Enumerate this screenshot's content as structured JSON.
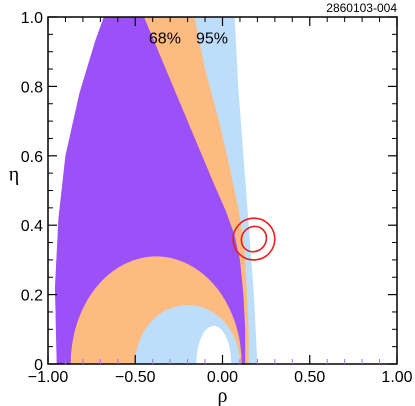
{
  "figure_id": "2860103-004",
  "chart_data": {
    "type": "area",
    "xlabel": "ρ",
    "ylabel": "η",
    "xlim": [
      -1.0,
      1.0
    ],
    "ylim": [
      0,
      1.0
    ],
    "x_ticks": [
      -1.0,
      -0.5,
      0.0,
      0.5,
      1.0
    ],
    "x_tick_labels": [
      "−1.00",
      "−0.50",
      "0.00",
      "0.50",
      "1.00"
    ],
    "y_ticks": [
      0,
      0.2,
      0.4,
      0.6,
      0.8,
      1.0
    ],
    "y_tick_labels": [
      "0",
      "0.2",
      "0.4",
      "0.6",
      "0.8",
      "1.0"
    ],
    "grid": false,
    "colors": {
      "inner_region": "#9b51f7",
      "region_68": "#fdbb82",
      "region_95": "#bcdefa",
      "ellipse": "#e8201e",
      "tick_minor": "#a070f0"
    },
    "regions": [
      {
        "name": "95%",
        "label": "95%",
        "label_at": [
          -0.06,
          0.95
        ],
        "color": "#bcdefa",
        "boundary": [
          [
            -0.95,
            0.0
          ],
          [
            -0.96,
            0.22
          ],
          [
            -0.94,
            0.42
          ],
          [
            -0.9,
            0.6
          ],
          [
            -0.82,
            0.78
          ],
          [
            -0.73,
            0.93
          ],
          [
            -0.68,
            1.0
          ],
          [
            0.07,
            1.0
          ],
          [
            0.09,
            0.8
          ],
          [
            0.12,
            0.6
          ],
          [
            0.15,
            0.4
          ],
          [
            0.18,
            0.2
          ],
          [
            0.2,
            0.0
          ]
        ]
      },
      {
        "name": "68%",
        "label": "68%",
        "label_at": [
          -0.33,
          0.95
        ],
        "color": "#fdbb82",
        "boundary": [
          [
            -0.95,
            0.0
          ],
          [
            -0.96,
            0.22
          ],
          [
            -0.94,
            0.42
          ],
          [
            -0.9,
            0.6
          ],
          [
            -0.82,
            0.78
          ],
          [
            -0.73,
            0.93
          ],
          [
            -0.68,
            1.0
          ],
          [
            -0.16,
            1.0
          ],
          [
            -0.1,
            0.85
          ],
          [
            -0.02,
            0.7
          ],
          [
            0.04,
            0.57
          ],
          [
            0.09,
            0.45
          ],
          [
            0.12,
            0.36
          ],
          [
            0.13,
            0.3
          ],
          [
            0.14,
            0.2
          ],
          [
            0.15,
            0.1
          ],
          [
            0.15,
            0.0
          ]
        ]
      },
      {
        "name": "inner",
        "label": "",
        "color": "#9b51f7",
        "boundary": [
          [
            -0.95,
            0.0
          ],
          [
            -0.96,
            0.22
          ],
          [
            -0.94,
            0.42
          ],
          [
            -0.9,
            0.6
          ],
          [
            -0.82,
            0.78
          ],
          [
            -0.73,
            0.93
          ],
          [
            -0.68,
            1.0
          ],
          [
            -0.45,
            1.0
          ],
          [
            -0.35,
            0.88
          ],
          [
            -0.25,
            0.76
          ],
          [
            -0.15,
            0.64
          ],
          [
            -0.05,
            0.52
          ],
          [
            0.02,
            0.44
          ],
          [
            0.07,
            0.37
          ],
          [
            0.1,
            0.3
          ],
          [
            0.12,
            0.2
          ],
          [
            0.13,
            0.1
          ],
          [
            0.13,
            0.0
          ]
        ]
      }
    ],
    "arcs": [
      {
        "name": "outer-arc-68",
        "color": "#fdbb82",
        "center": [
          -0.38,
          0.0
        ],
        "rx": 0.49,
        "ry": 0.31
      },
      {
        "name": "arc-95",
        "color": "#bcdefa",
        "center": [
          -0.2,
          0.0
        ],
        "rx": 0.3,
        "ry": 0.17
      },
      {
        "name": "inner-white-arc",
        "color": "#ffffff",
        "center": [
          -0.05,
          0.0
        ],
        "rx": 0.1,
        "ry": 0.11
      }
    ],
    "ellipses": [
      {
        "name": "measurement-outer",
        "center": [
          0.18,
          0.36
        ],
        "rx": 0.12,
        "ry": 0.06,
        "angle_deg": -48
      },
      {
        "name": "measurement-inner",
        "center": [
          0.18,
          0.36
        ],
        "rx": 0.075,
        "ry": 0.035,
        "angle_deg": -48
      }
    ]
  }
}
